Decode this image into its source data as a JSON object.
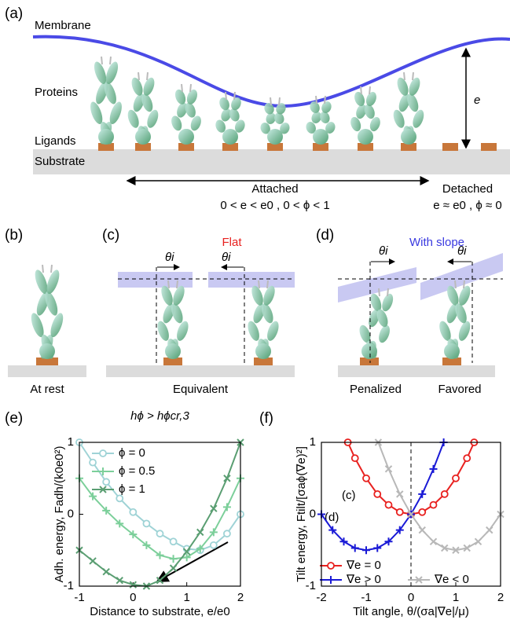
{
  "panel_a": {
    "label": "(a)",
    "membrane": "Membrane",
    "proteins": "Proteins",
    "height": "e",
    "ligands": "Ligands",
    "substrate": "Substrate",
    "attached": "Attached",
    "attached_range": "0 < e < e0 , 0 < ϕ < 1",
    "detached": "Detached",
    "detached_range": "e ≈ e0 , ϕ ≈ 0"
  },
  "panel_b": {
    "label": "(b)",
    "caption": "At rest"
  },
  "panel_c": {
    "label": "(c)",
    "title": "Flat",
    "angle": "θi",
    "caption": "Equivalent"
  },
  "panel_d": {
    "label": "(d)",
    "title": "With slope",
    "angle": "θi",
    "captions": [
      "Penalized",
      "Favored"
    ]
  },
  "chart_data": [
    {
      "type": "line",
      "label": "(e)",
      "title": "hϕ > hϕcr,3",
      "xlabel": "Distance to substrate, e/e0",
      "ylabel": "Adh. energy, Fadh/(k0e0²)",
      "xlim": [
        -1,
        2
      ],
      "ylim": [
        -1,
        1
      ],
      "xticks": [
        -1,
        0,
        1,
        2
      ],
      "yticks": [
        -1,
        0,
        1
      ],
      "legend": "upper left",
      "series": [
        {
          "name": "ϕ = 0",
          "color": "#9fd3d6",
          "marker": "circle",
          "x": [
            -1,
            -0.75,
            -0.5,
            -0.25,
            0,
            0.25,
            0.5,
            0.75,
            1,
            1.25,
            1.5,
            1.75,
            2
          ],
          "values": [
            1.0,
            0.72,
            0.45,
            0.22,
            0.03,
            -0.13,
            -0.27,
            -0.38,
            -0.48,
            -0.5,
            -0.43,
            -0.27,
            0
          ]
        },
        {
          "name": "ϕ = 0.5",
          "color": "#7ccf9a",
          "marker": "plus",
          "x": [
            -1,
            -0.75,
            -0.5,
            -0.25,
            0,
            0.25,
            0.5,
            0.75,
            1,
            1.25,
            1.5,
            1.75,
            2
          ],
          "values": [
            0.5,
            0.25,
            0.05,
            -0.13,
            -0.28,
            -0.43,
            -0.57,
            -0.62,
            -0.6,
            -0.48,
            -0.25,
            0.1,
            0.5
          ]
        },
        {
          "name": "ϕ = 1",
          "color": "#5a9e72",
          "marker": "x",
          "x": [
            -1,
            -0.75,
            -0.5,
            -0.25,
            0,
            0.25,
            0.5,
            0.75,
            1,
            1.25,
            1.5,
            1.75,
            2
          ],
          "values": [
            -0.5,
            -0.65,
            -0.8,
            -0.92,
            -0.98,
            -1.0,
            -0.92,
            -0.75,
            -0.52,
            -0.25,
            0.08,
            0.5,
            1.0
          ]
        }
      ]
    },
    {
      "type": "line",
      "label": "(f)",
      "xlabel": "Tilt angle, θ/(σa|∇e|/μ)",
      "ylabel": "Tilt energy, Ftilt/[σaϕ(∇e)²]",
      "xlim": [
        -2,
        2
      ],
      "ylim": [
        -1,
        1
      ],
      "xticks": [
        -2,
        -1,
        0,
        1,
        2
      ],
      "yticks": [
        -1,
        0,
        1
      ],
      "legend": "lower",
      "annotations": [
        "(c)",
        "(d)"
      ],
      "series": [
        {
          "name": "∇e = 0",
          "color": "#e8211f",
          "marker": "circle",
          "x": [
            -1.41,
            -1.25,
            -1,
            -0.75,
            -0.5,
            -0.25,
            0,
            0.25,
            0.5,
            0.75,
            1,
            1.25,
            1.41
          ],
          "values": [
            1.0,
            0.78,
            0.5,
            0.28,
            0.13,
            0.03,
            0,
            0.03,
            0.13,
            0.28,
            0.5,
            0.78,
            1.0
          ]
        },
        {
          "name": "∇e > 0",
          "color": "#1a1ad6",
          "marker": "plus",
          "x": [
            -2,
            -1.75,
            -1.5,
            -1.25,
            -1,
            -0.75,
            -0.5,
            -0.25,
            0,
            0.25,
            0.5,
            0.73
          ],
          "values": [
            0,
            -0.22,
            -0.38,
            -0.47,
            -0.5,
            -0.47,
            -0.38,
            -0.22,
            0,
            0.28,
            0.63,
            1.0
          ]
        },
        {
          "name": "∇e < 0",
          "color": "#b8b8b8",
          "marker": "x",
          "x": [
            -0.73,
            -0.5,
            -0.25,
            0,
            0.25,
            0.5,
            0.75,
            1,
            1.25,
            1.5,
            1.75,
            2
          ],
          "values": [
            1.0,
            0.63,
            0.28,
            0,
            -0.22,
            -0.38,
            -0.47,
            -0.5,
            -0.47,
            -0.38,
            -0.22,
            0
          ]
        }
      ]
    }
  ]
}
